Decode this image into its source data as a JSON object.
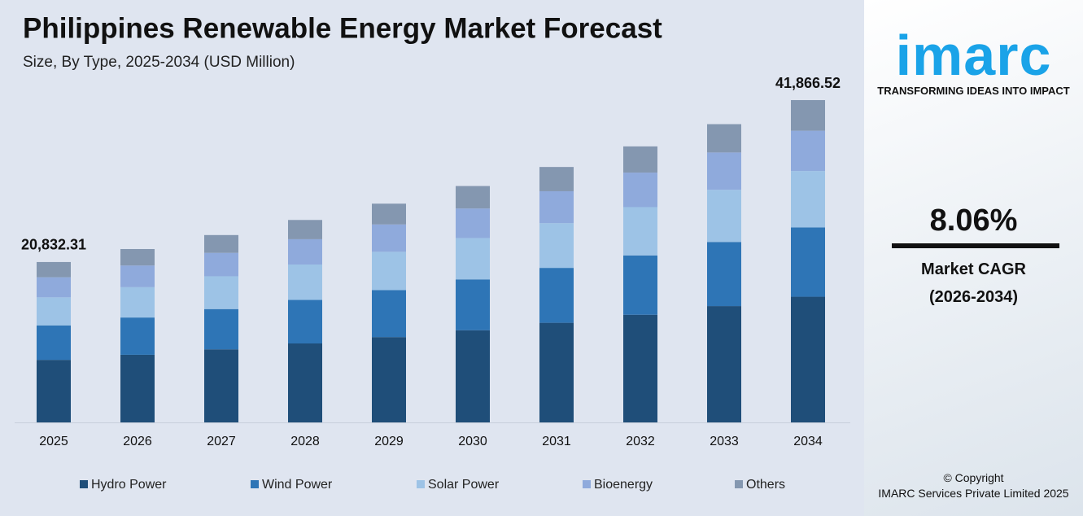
{
  "chart_data": {
    "type": "stacked_bar",
    "title": "Philippines Renewable Energy Market Forecast",
    "subtitle": "Size, By Type, 2025-2034 (USD Million)",
    "categories": [
      "2025",
      "2026",
      "2027",
      "2028",
      "2029",
      "2030",
      "2031",
      "2032",
      "2033",
      "2034"
    ],
    "series": [
      {
        "name": "Hydro Power",
        "color": "#1f4e79",
        "values": [
          8125,
          8783,
          9491,
          10255,
          11082,
          11975,
          12940,
          13983,
          15110,
          16328
        ]
      },
      {
        "name": "Wind Power",
        "color": "#2e75b6",
        "values": [
          4479,
          4842,
          5232,
          5654,
          6109,
          6602,
          7134,
          7709,
          8330,
          9001
        ]
      },
      {
        "name": "Solar Power",
        "color": "#9dc3e6",
        "values": [
          3646,
          3941,
          4259,
          4602,
          4973,
          5374,
          5807,
          6274,
          6780,
          7327
        ]
      },
      {
        "name": "Bioenergy",
        "color": "#8faadc",
        "values": [
          2604,
          2815,
          3042,
          3287,
          3552,
          3838,
          4148,
          4482,
          4843,
          5233
        ]
      },
      {
        "name": "Others",
        "color": "#8497b0",
        "values": [
          1979,
          2139,
          2312,
          2498,
          2700,
          2917,
          3152,
          3406,
          3681,
          3977
        ]
      }
    ],
    "total_labels": [
      {
        "category": "2025",
        "value": 20832.31,
        "label": "20,832.31"
      },
      {
        "category": "2034",
        "value": 41866.52,
        "label": "41,866.52"
      }
    ],
    "legend": "bottom"
  },
  "sidebar": {
    "logo": "imarc",
    "tagline": "TRANSFORMING IDEAS INTO IMPACT",
    "cagr": "8.06%",
    "cagr_label": "Market CAGR",
    "cagr_period": "(2026-2034)",
    "copyright": "© Copyright",
    "company": "IMARC Services Private Limited 2025"
  }
}
